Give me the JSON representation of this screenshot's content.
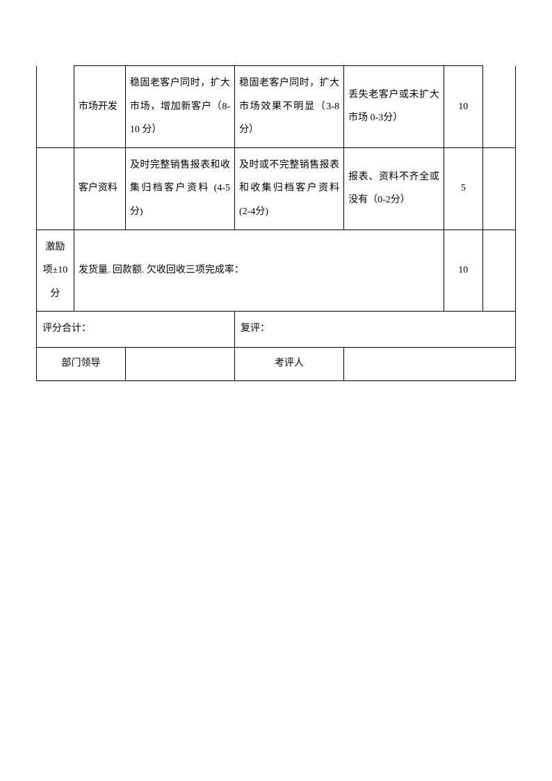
{
  "rows": {
    "market": {
      "item": "市场开发",
      "level1": "稳固老客户同时，扩大市场，增加新客户（8-10 分）",
      "level2": "稳固老客户同时，扩大市场效果不明显（3-8 分）",
      "level3": "丢失老客户或未扩大市场 0-3分）",
      "score": "10"
    },
    "customer": {
      "item": "客户资料",
      "level1": "及时完整销售报表和收集归档客户资料 (4-5 分)",
      "level2": "及时或不完整销售报表和收集归档客户资料 (2-4分)",
      "level3": "报表、资料不齐全或没有（0-2分）",
      "score": "5"
    },
    "incentive": {
      "category": "激励项±10分",
      "content": "发货量. 回款额. 欠收回收三项完成率：",
      "score": "10"
    }
  },
  "summary": {
    "scoreTotal": "评分合计：",
    "review": "复评："
  },
  "footer": {
    "deptLeader": "部门领导",
    "evaluator": "考评人"
  }
}
